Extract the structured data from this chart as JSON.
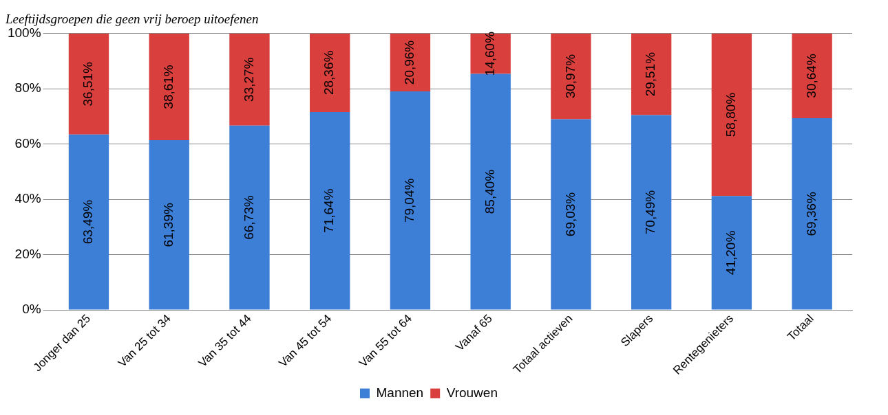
{
  "chart_data": {
    "type": "bar",
    "stacked": true,
    "title": "Leeftijdsgroepen die geen vrij beroep uitoefenen",
    "categories": [
      "Jonger dan 25",
      "Van 25 tot 34",
      "Van 35 tot 44",
      "Van 45 tot 54",
      "Van 55 tot 64",
      "Vanaf 65",
      "Totaal actieven",
      "Slapers",
      "Rentegenieters",
      "Totaal"
    ],
    "series": [
      {
        "name": "Mannen",
        "color": "#3d7fd6",
        "values": [
          63.49,
          61.39,
          66.73,
          71.64,
          79.04,
          85.4,
          69.03,
          70.49,
          41.2,
          69.36
        ],
        "value_labels": [
          "63,49%",
          "61,39%",
          "66,73%",
          "71,64%",
          "79,04%",
          "85,40%",
          "69,03%",
          "70,49%",
          "41,20%",
          "69,36%"
        ]
      },
      {
        "name": "Vrouwen",
        "color": "#d9403d",
        "values": [
          36.51,
          38.61,
          33.27,
          28.36,
          20.96,
          14.6,
          30.97,
          29.51,
          58.8,
          30.64
        ],
        "value_labels": [
          "36,51%",
          "38,61%",
          "33,27%",
          "28,36%",
          "20,96%",
          "14,60%",
          "30,97%",
          "29,51%",
          "58,80%",
          "30,64%"
        ]
      }
    ],
    "ylim": [
      0,
      100
    ],
    "yticks": [
      {
        "value": 0,
        "label": "0%"
      },
      {
        "value": 20,
        "label": "20%"
      },
      {
        "value": 40,
        "label": "40%"
      },
      {
        "value": 60,
        "label": "60%"
      },
      {
        "value": 80,
        "label": "80%"
      },
      {
        "value": 100,
        "label": "100%"
      }
    ],
    "grid": "y",
    "legend": "bottom"
  }
}
